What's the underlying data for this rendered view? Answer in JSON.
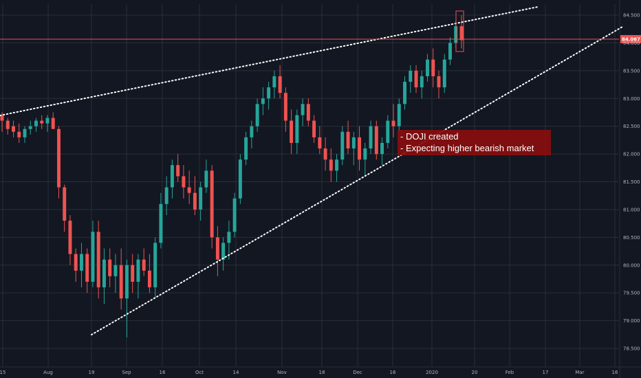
{
  "chart_data": {
    "type": "candlestick",
    "title": "",
    "xlabel": "",
    "ylabel": "",
    "ylim": [
      78.25,
      84.75
    ],
    "x_tick_labels": [
      "15",
      "Aug",
      "19",
      "Sep",
      "16",
      "Oct",
      "14",
      "Nov",
      "18",
      "Dec",
      "16",
      "2020",
      "20",
      "Feb",
      "17",
      "Mar",
      "16"
    ],
    "y_tick_labels": [
      "84.500",
      "84.000",
      "83.500",
      "83.000",
      "82.500",
      "82.000",
      "81.500",
      "81.000",
      "80.500",
      "80.000",
      "79.500",
      "79.000",
      "78.500"
    ],
    "y_ticks": [
      84.5,
      84.0,
      83.5,
      83.0,
      82.5,
      82.0,
      81.5,
      81.0,
      80.5,
      80.0,
      79.5,
      79.0,
      78.5
    ],
    "current_price": {
      "label": "84.067",
      "value": 84.067
    },
    "grid": true,
    "colors": {
      "up": "#26a69a",
      "down": "#ef5350",
      "background": "#131722",
      "grid": "#2a2e39",
      "annotation_bg": "#880e0e"
    },
    "annotation": {
      "lines": [
        "- DOJI created",
        "- Expecting higher bearish market"
      ]
    },
    "candles": [
      {
        "o": 82.7,
        "h": 82.75,
        "l": 82.4,
        "c": 82.6
      },
      {
        "o": 82.6,
        "h": 82.65,
        "l": 82.35,
        "c": 82.45
      },
      {
        "o": 82.5,
        "h": 82.6,
        "l": 82.3,
        "c": 82.4
      },
      {
        "o": 82.4,
        "h": 82.55,
        "l": 82.2,
        "c": 82.3
      },
      {
        "o": 82.3,
        "h": 82.5,
        "l": 82.2,
        "c": 82.45
      },
      {
        "o": 82.45,
        "h": 82.6,
        "l": 82.35,
        "c": 82.5
      },
      {
        "o": 82.5,
        "h": 82.65,
        "l": 82.4,
        "c": 82.6
      },
      {
        "o": 82.6,
        "h": 82.7,
        "l": 82.45,
        "c": 82.55
      },
      {
        "o": 82.55,
        "h": 82.7,
        "l": 82.4,
        "c": 82.65
      },
      {
        "o": 82.65,
        "h": 82.75,
        "l": 82.5,
        "c": 82.45
      },
      {
        "o": 82.45,
        "h": 82.5,
        "l": 81.2,
        "c": 81.4
      },
      {
        "o": 81.4,
        "h": 81.45,
        "l": 80.6,
        "c": 80.8
      },
      {
        "o": 80.8,
        "h": 80.9,
        "l": 80.0,
        "c": 80.2
      },
      {
        "o": 80.2,
        "h": 80.3,
        "l": 79.7,
        "c": 79.9
      },
      {
        "o": 79.9,
        "h": 80.4,
        "l": 79.6,
        "c": 80.2
      },
      {
        "o": 80.2,
        "h": 80.3,
        "l": 79.5,
        "c": 79.7
      },
      {
        "o": 79.7,
        "h": 80.8,
        "l": 79.6,
        "c": 80.6
      },
      {
        "o": 80.6,
        "h": 80.8,
        "l": 79.4,
        "c": 79.6
      },
      {
        "o": 79.6,
        "h": 80.3,
        "l": 79.3,
        "c": 80.1
      },
      {
        "o": 80.1,
        "h": 80.3,
        "l": 79.6,
        "c": 79.8
      },
      {
        "o": 79.8,
        "h": 80.2,
        "l": 79.5,
        "c": 80.0
      },
      {
        "o": 80.0,
        "h": 80.3,
        "l": 79.2,
        "c": 79.4
      },
      {
        "o": 79.4,
        "h": 80.1,
        "l": 78.7,
        "c": 80.0
      },
      {
        "o": 80.0,
        "h": 80.2,
        "l": 79.5,
        "c": 79.7
      },
      {
        "o": 79.7,
        "h": 80.2,
        "l": 79.4,
        "c": 80.1
      },
      {
        "o": 80.1,
        "h": 80.3,
        "l": 79.8,
        "c": 79.9
      },
      {
        "o": 79.9,
        "h": 80.2,
        "l": 79.5,
        "c": 79.6
      },
      {
        "o": 79.6,
        "h": 80.5,
        "l": 79.4,
        "c": 80.4
      },
      {
        "o": 80.4,
        "h": 81.3,
        "l": 80.3,
        "c": 81.1
      },
      {
        "o": 81.1,
        "h": 81.6,
        "l": 80.9,
        "c": 81.4
      },
      {
        "o": 81.4,
        "h": 81.9,
        "l": 81.2,
        "c": 81.8
      },
      {
        "o": 81.8,
        "h": 82.0,
        "l": 81.5,
        "c": 81.6
      },
      {
        "o": 81.6,
        "h": 81.8,
        "l": 81.2,
        "c": 81.4
      },
      {
        "o": 81.4,
        "h": 81.7,
        "l": 81.1,
        "c": 81.3
      },
      {
        "o": 81.3,
        "h": 81.6,
        "l": 80.9,
        "c": 81.0
      },
      {
        "o": 81.0,
        "h": 81.5,
        "l": 80.8,
        "c": 81.4
      },
      {
        "o": 81.4,
        "h": 81.9,
        "l": 81.3,
        "c": 81.7
      },
      {
        "o": 81.7,
        "h": 81.8,
        "l": 80.3,
        "c": 80.5
      },
      {
        "o": 80.5,
        "h": 80.7,
        "l": 79.8,
        "c": 80.1
      },
      {
        "o": 80.1,
        "h": 80.5,
        "l": 79.9,
        "c": 80.4
      },
      {
        "o": 80.4,
        "h": 80.8,
        "l": 80.1,
        "c": 80.6
      },
      {
        "o": 80.6,
        "h": 81.3,
        "l": 80.5,
        "c": 81.2
      },
      {
        "o": 81.2,
        "h": 82.0,
        "l": 81.1,
        "c": 81.9
      },
      {
        "o": 81.9,
        "h": 82.4,
        "l": 81.8,
        "c": 82.3
      },
      {
        "o": 82.3,
        "h": 82.6,
        "l": 82.1,
        "c": 82.5
      },
      {
        "o": 82.5,
        "h": 83.0,
        "l": 82.4,
        "c": 82.9
      },
      {
        "o": 82.9,
        "h": 83.2,
        "l": 82.7,
        "c": 83.0
      },
      {
        "o": 83.0,
        "h": 83.3,
        "l": 82.8,
        "c": 83.2
      },
      {
        "o": 83.2,
        "h": 83.5,
        "l": 83.0,
        "c": 83.4
      },
      {
        "o": 83.4,
        "h": 83.6,
        "l": 83.0,
        "c": 83.1
      },
      {
        "o": 83.1,
        "h": 83.2,
        "l": 82.4,
        "c": 82.6
      },
      {
        "o": 82.6,
        "h": 82.8,
        "l": 82.0,
        "c": 82.2
      },
      {
        "o": 82.2,
        "h": 82.8,
        "l": 82.0,
        "c": 82.7
      },
      {
        "o": 82.7,
        "h": 83.0,
        "l": 82.5,
        "c": 82.9
      },
      {
        "o": 82.9,
        "h": 83.0,
        "l": 82.5,
        "c": 82.6
      },
      {
        "o": 82.6,
        "h": 82.7,
        "l": 82.2,
        "c": 82.3
      },
      {
        "o": 82.3,
        "h": 82.5,
        "l": 82.0,
        "c": 82.1
      },
      {
        "o": 82.1,
        "h": 82.3,
        "l": 81.7,
        "c": 81.9
      },
      {
        "o": 81.9,
        "h": 82.1,
        "l": 81.5,
        "c": 81.7
      },
      {
        "o": 81.7,
        "h": 82.0,
        "l": 81.5,
        "c": 81.9
      },
      {
        "o": 81.9,
        "h": 82.5,
        "l": 81.8,
        "c": 82.4
      },
      {
        "o": 82.4,
        "h": 82.6,
        "l": 82.0,
        "c": 82.1
      },
      {
        "o": 82.1,
        "h": 82.4,
        "l": 81.8,
        "c": 82.3
      },
      {
        "o": 82.3,
        "h": 82.5,
        "l": 81.7,
        "c": 81.9
      },
      {
        "o": 81.9,
        "h": 82.2,
        "l": 81.6,
        "c": 82.1
      },
      {
        "o": 82.1,
        "h": 82.6,
        "l": 82.0,
        "c": 82.5
      },
      {
        "o": 82.5,
        "h": 82.6,
        "l": 81.9,
        "c": 82.0
      },
      {
        "o": 82.0,
        "h": 82.3,
        "l": 81.8,
        "c": 82.2
      },
      {
        "o": 82.2,
        "h": 82.7,
        "l": 82.1,
        "c": 82.6
      },
      {
        "o": 82.6,
        "h": 82.9,
        "l": 82.3,
        "c": 82.5
      },
      {
        "o": 82.5,
        "h": 83.0,
        "l": 82.4,
        "c": 82.9
      },
      {
        "o": 82.9,
        "h": 83.4,
        "l": 82.8,
        "c": 83.3
      },
      {
        "o": 83.3,
        "h": 83.6,
        "l": 83.1,
        "c": 83.5
      },
      {
        "o": 83.5,
        "h": 83.6,
        "l": 83.1,
        "c": 83.2
      },
      {
        "o": 83.2,
        "h": 83.5,
        "l": 83.0,
        "c": 83.4
      },
      {
        "o": 83.4,
        "h": 83.8,
        "l": 83.3,
        "c": 83.7
      },
      {
        "o": 83.7,
        "h": 83.9,
        "l": 83.2,
        "c": 83.4
      },
      {
        "o": 83.4,
        "h": 83.5,
        "l": 83.0,
        "c": 83.2
      },
      {
        "o": 83.2,
        "h": 83.8,
        "l": 83.1,
        "c": 83.7
      },
      {
        "o": 83.7,
        "h": 84.1,
        "l": 83.6,
        "c": 84.0
      },
      {
        "o": 84.0,
        "h": 84.4,
        "l": 83.9,
        "c": 84.3
      },
      {
        "o": 84.3,
        "h": 84.5,
        "l": 83.9,
        "c": 84.05
      }
    ]
  }
}
